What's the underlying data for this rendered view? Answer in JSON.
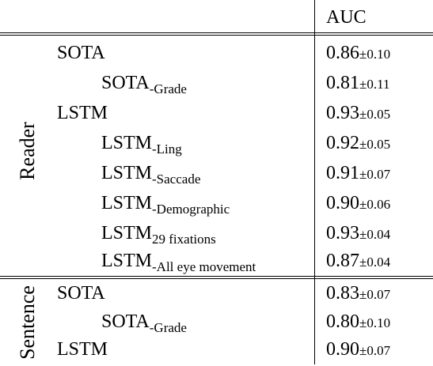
{
  "header": {
    "auc_label": "AUC"
  },
  "groups": [
    {
      "name": "Reader",
      "rows": [
        {
          "label": "SOTA",
          "sub": "",
          "value": "0.86",
          "pm": "±0.10",
          "indent": 1
        },
        {
          "label": "SOTA",
          "sub": "-Grade",
          "value": "0.81",
          "pm": "±0.11",
          "indent": 2
        },
        {
          "label": "LSTM",
          "sub": "",
          "value": "0.93",
          "pm": "±0.05",
          "indent": 1
        },
        {
          "label": "LSTM",
          "sub": "-Ling",
          "value": "0.92",
          "pm": "±0.05",
          "indent": 2
        },
        {
          "label": "LSTM",
          "sub": "-Saccade",
          "value": "0.91",
          "pm": "±0.07",
          "indent": 2
        },
        {
          "label": "LSTM",
          "sub": "-Demographic",
          "value": "0.90",
          "pm": "±0.06",
          "indent": 2
        },
        {
          "label": "LSTM",
          "sub": "29 fixations",
          "value": "0.93",
          "pm": "±0.04",
          "indent": 2
        },
        {
          "label": "LSTM",
          "sub": "-All eye movement",
          "value": "0.87",
          "pm": "±0.04",
          "indent": 2
        }
      ]
    },
    {
      "name": "Sentence",
      "rows": [
        {
          "label": "SOTA",
          "sub": "",
          "value": "0.83",
          "pm": "±0.07",
          "indent": 1
        },
        {
          "label": "SOTA",
          "sub": "-Grade",
          "value": "0.80",
          "pm": "±0.10",
          "indent": 2
        },
        {
          "label": "LSTM",
          "sub": "",
          "value": "0.90",
          "pm": "±0.07",
          "indent": 1
        }
      ]
    }
  ]
}
